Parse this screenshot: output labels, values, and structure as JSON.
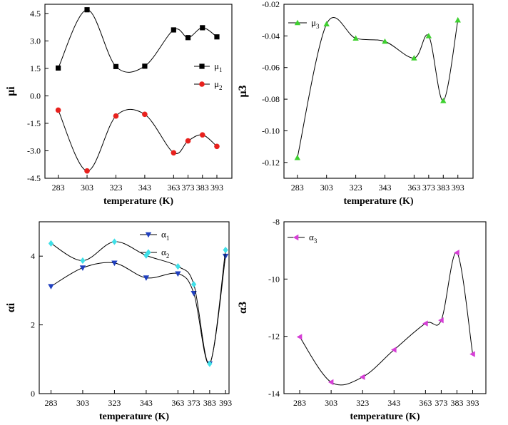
{
  "chart_data": [
    {
      "type": "line",
      "panel": "top-left",
      "xlabel": "temperature (K)",
      "ylabel": "μi",
      "categories": [
        "283",
        "303",
        "323",
        "343",
        "363",
        "373",
        "383",
        "393"
      ],
      "x": [
        283,
        303,
        323,
        343,
        363,
        373,
        383,
        393
      ],
      "xticks": [
        283,
        303,
        323,
        343,
        363,
        373,
        383,
        393
      ],
      "xlim": [
        273.8,
        403.4
      ],
      "ylim": [
        -4.5,
        5.0
      ],
      "yticks": [
        -4.5,
        -3.0,
        -1.5,
        0.0,
        1.5,
        3.0,
        4.5
      ],
      "ytick_labels": [
        "-4.5",
        "-3.0",
        "-1.5",
        "0.0",
        "1.5",
        "3.0",
        "4.5"
      ],
      "legend_position": "center-right",
      "series": [
        {
          "name": "μ1",
          "label_base": "μ",
          "label_sub": "1",
          "color": "#000000",
          "marker": "square",
          "x": [
            283,
            303,
            323,
            343,
            363,
            373,
            383,
            393
          ],
          "values": [
            1.52,
            4.7,
            1.6,
            1.62,
            3.6,
            3.18,
            3.72,
            3.22
          ]
        },
        {
          "name": "μ2",
          "label_base": "μ",
          "label_sub": "2",
          "color": "#e8211d",
          "marker": "circle",
          "x": [
            283,
            303,
            323,
            343,
            363,
            373,
            383,
            393
          ],
          "values": [
            -0.78,
            -4.1,
            -1.1,
            -1.01,
            -3.11,
            -2.46,
            -2.13,
            -2.76
          ]
        }
      ]
    },
    {
      "type": "line",
      "panel": "top-right",
      "xlabel": "temperature (K)",
      "ylabel": "μ3",
      "categories": [
        "283",
        "303",
        "323",
        "343",
        "363",
        "373",
        "383",
        "393"
      ],
      "x": [
        283,
        303,
        323,
        343,
        363,
        373,
        383,
        393
      ],
      "xticks": [
        283,
        303,
        323,
        343,
        363,
        373,
        383,
        393
      ],
      "xlim": [
        273.8,
        403.4
      ],
      "ylim": [
        -0.13,
        -0.02
      ],
      "yticks": [
        -0.12,
        -0.1,
        -0.08,
        -0.06,
        -0.04,
        -0.02
      ],
      "ytick_labels": [
        "-0.12",
        "-0.10",
        "-0.08",
        "-0.06",
        "-0.04",
        "-0.02"
      ],
      "legend_position": "top-left",
      "series": [
        {
          "name": "μ3",
          "label_base": "μ",
          "label_sub": "3",
          "color": "#3ed12f",
          "marker": "triangle-up",
          "x": [
            283,
            303,
            323,
            343,
            363,
            373,
            383,
            393
          ],
          "values": [
            -0.117,
            -0.0325,
            -0.0415,
            -0.0435,
            -0.054,
            -0.04,
            -0.081,
            -0.03
          ]
        }
      ]
    },
    {
      "type": "line",
      "panel": "bottom-left",
      "xlabel": "temperature (K)",
      "ylabel": "αi",
      "categories": [
        "283",
        "303",
        "323",
        "343",
        "363",
        "373",
        "383",
        "393"
      ],
      "x": [
        283,
        303,
        323,
        343,
        363,
        373,
        383,
        393
      ],
      "xticks": [
        283,
        303,
        323,
        343,
        363,
        373,
        383,
        393
      ],
      "xlim": [
        275.6,
        395.2
      ],
      "ylim": [
        0,
        5.0
      ],
      "yticks": [
        0,
        2,
        4
      ],
      "ytick_labels": [
        "0",
        "2",
        "4"
      ],
      "legend_position": "top-center",
      "series": [
        {
          "name": "α1",
          "label_base": "α",
          "label_sub": "1",
          "color": "#1f3fbf",
          "marker": "triangle-down",
          "x": [
            283,
            303,
            323,
            343,
            363,
            373,
            383,
            393
          ],
          "values": [
            3.12,
            3.66,
            3.8,
            3.37,
            3.49,
            2.92,
            0.87,
            4.0
          ]
        },
        {
          "name": "α2",
          "label_base": "α",
          "label_sub": "2",
          "color": "#3fe0e8",
          "marker": "diamond",
          "x": [
            283,
            303,
            323,
            343,
            363,
            373,
            383,
            393
          ],
          "values": [
            4.37,
            3.87,
            4.42,
            4.02,
            3.7,
            3.18,
            0.87,
            4.18
          ]
        }
      ]
    },
    {
      "type": "line",
      "panel": "bottom-right",
      "xlabel": "temperature (K)",
      "ylabel": "α3",
      "categories": [
        "283",
        "303",
        "323",
        "343",
        "363",
        "373",
        "383",
        "393"
      ],
      "x": [
        283,
        303,
        323,
        343,
        363,
        373,
        383,
        393
      ],
      "xticks": [
        283,
        303,
        323,
        343,
        363,
        373,
        383,
        393
      ],
      "xlim": [
        273.0,
        401.4
      ],
      "ylim": [
        -14,
        -8
      ],
      "yticks": [
        -14,
        -12,
        -10,
        -8
      ],
      "ytick_labels": [
        "-14",
        "-12",
        "-10",
        "-8"
      ],
      "legend_position": "top-left",
      "series": [
        {
          "name": "α3",
          "label_base": "α",
          "label_sub": "3",
          "color": "#d63fd6",
          "marker": "triangle-left",
          "x": [
            283,
            303,
            323,
            343,
            363,
            373,
            383,
            393
          ],
          "values": [
            -12.02,
            -13.6,
            -13.42,
            -12.47,
            -11.55,
            -11.44,
            -9.08,
            -12.62
          ]
        }
      ]
    }
  ]
}
